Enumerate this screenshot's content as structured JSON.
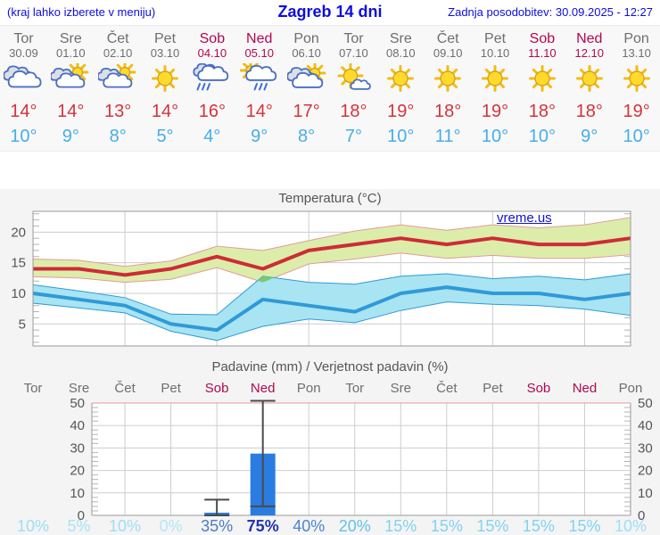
{
  "header": {
    "hint": "(kraj lahko izberete v meniju)",
    "title": "Zagreb 14 dni",
    "updated": "Zadnja posodobitev: 30.09.2025 - 12:27"
  },
  "watermark": "vreme.us",
  "colors": {
    "link_blue": "#0d0de0",
    "weekday": "#6e6e6e",
    "weekend": "#b3074f",
    "temp_max": "#d4333b",
    "temp_min": "#47ade8",
    "bar_blue": "#2a7ce0",
    "whisker": "#4a4a4a",
    "band_green": "#dcedaa",
    "band_green_edge": "#e39b9b",
    "band_cyan": "#a9e4f2",
    "band_overlap": "#7cc96e",
    "line_red": "#ce2b38",
    "line_blue": "#2f9ad8",
    "grid": "#cdcdcd",
    "axis_text": "#555555"
  },
  "days": [
    {
      "name": "Tor",
      "date": "30.09",
      "weekend": false,
      "icon": "cloudy",
      "tmax": 14,
      "tmin": 10,
      "prob": "10%",
      "prob_color": "#9ddff2",
      "prob_bold": false
    },
    {
      "name": "Sre",
      "date": "01.10",
      "weekend": false,
      "icon": "partly-cloudy",
      "tmax": 14,
      "tmin": 9,
      "prob": "5%",
      "prob_color": "#a6e3f4",
      "prob_bold": false
    },
    {
      "name": "Čet",
      "date": "02.10",
      "weekend": false,
      "icon": "partly-cloudy",
      "tmax": 13,
      "tmin": 8,
      "prob": "10%",
      "prob_color": "#9ddff2",
      "prob_bold": false
    },
    {
      "name": "Pet",
      "date": "03.10",
      "weekend": false,
      "icon": "sunny",
      "tmax": 14,
      "tmin": 5,
      "prob": "0%",
      "prob_color": "#b2e7f6",
      "prob_bold": false
    },
    {
      "name": "Sob",
      "date": "04.10",
      "weekend": true,
      "icon": "rain",
      "tmax": 16,
      "tmin": 4,
      "prob": "35%",
      "prob_color": "#4d7dc0",
      "prob_bold": false
    },
    {
      "name": "Ned",
      "date": "05.10",
      "weekend": true,
      "icon": "sun-rain",
      "tmax": 14,
      "tmin": 9,
      "prob": "75%",
      "prob_color": "#2433b2",
      "prob_bold": true
    },
    {
      "name": "Pon",
      "date": "06.10",
      "weekend": false,
      "icon": "mostly-cloudy",
      "tmax": 17,
      "tmin": 8,
      "prob": "40%",
      "prob_color": "#4a86cc",
      "prob_bold": false
    },
    {
      "name": "Tor",
      "date": "07.10",
      "weekend": false,
      "icon": "mostly-sunny",
      "tmax": 18,
      "tmin": 7,
      "prob": "20%",
      "prob_color": "#5fc2e8",
      "prob_bold": false
    },
    {
      "name": "Sre",
      "date": "08.10",
      "weekend": false,
      "icon": "sunny",
      "tmax": 19,
      "tmin": 10,
      "prob": "15%",
      "prob_color": "#82d3ee",
      "prob_bold": false
    },
    {
      "name": "Čet",
      "date": "09.10",
      "weekend": false,
      "icon": "sunny",
      "tmax": 18,
      "tmin": 11,
      "prob": "15%",
      "prob_color": "#82d3ee",
      "prob_bold": false
    },
    {
      "name": "Pet",
      "date": "10.10",
      "weekend": false,
      "icon": "sunny",
      "tmax": 19,
      "tmin": 10,
      "prob": "15%",
      "prob_color": "#82d3ee",
      "prob_bold": false
    },
    {
      "name": "Sob",
      "date": "11.10",
      "weekend": true,
      "icon": "sunny",
      "tmax": 18,
      "tmin": 10,
      "prob": "15%",
      "prob_color": "#82d3ee",
      "prob_bold": false
    },
    {
      "name": "Ned",
      "date": "12.10",
      "weekend": true,
      "icon": "sunny",
      "tmax": 18,
      "tmin": 9,
      "prob": "15%",
      "prob_color": "#82d3ee",
      "prob_bold": false
    },
    {
      "name": "Pon",
      "date": "13.10",
      "weekend": false,
      "icon": "sunny",
      "tmax": 19,
      "tmin": 10,
      "prob": "10%",
      "prob_color": "#9ddff2",
      "prob_bold": false
    }
  ],
  "chart_data": [
    {
      "type": "line",
      "title": "Temperatura (°C)",
      "categories": [
        "Tor 30.09",
        "Sre 01.10",
        "Čet 02.10",
        "Pet 03.10",
        "Sob 04.10",
        "Ned 05.10",
        "Pon 06.10",
        "Tor 07.10",
        "Sre 08.10",
        "Čet 09.10",
        "Pet 10.10",
        "Sob 11.10",
        "Ned 12.10",
        "Pon 13.10"
      ],
      "ylim": [
        1.4,
        23.4
      ],
      "yticks": [
        5,
        10,
        15,
        20
      ],
      "grid": true,
      "series": [
        {
          "name": "max",
          "values": [
            14,
            14,
            13,
            14,
            16,
            14,
            17,
            18,
            19,
            18,
            19,
            18,
            18,
            19
          ]
        },
        {
          "name": "max_upper",
          "values": [
            15.6,
            15.4,
            14.4,
            15.3,
            17.7,
            17.0,
            18.6,
            20.2,
            21.2,
            20.3,
            21.2,
            20.7,
            21.2,
            22.4
          ]
        },
        {
          "name": "max_lower",
          "values": [
            12.7,
            12.5,
            11.8,
            12.3,
            14.2,
            11.8,
            14.8,
            15.6,
            16.6,
            15.7,
            16.2,
            15.7,
            15.7,
            16.3
          ]
        },
        {
          "name": "min",
          "values": [
            10,
            9,
            8,
            5,
            4,
            9,
            8,
            7,
            10,
            11,
            10,
            10,
            9,
            10
          ]
        },
        {
          "name": "min_upper",
          "values": [
            11.4,
            10.4,
            9.3,
            6.6,
            6.5,
            12.8,
            11.8,
            11.5,
            12.8,
            13.2,
            12.4,
            12.8,
            12.2,
            13.2
          ]
        },
        {
          "name": "min_lower",
          "values": [
            8.4,
            7.6,
            6.8,
            3.8,
            2.3,
            4.6,
            5.8,
            5.2,
            7.2,
            8.6,
            8.2,
            8.0,
            7.4,
            6.4
          ]
        }
      ]
    },
    {
      "type": "bar",
      "title": "Padavine (mm) / Verjetnost padavin (%)",
      "categories": [
        "Tor",
        "Sre",
        "Čet",
        "Pet",
        "Sob",
        "Ned",
        "Pon",
        "Tor",
        "Sre",
        "Čet",
        "Pet",
        "Sob",
        "Ned",
        "Pon"
      ],
      "values": [
        0,
        0,
        0,
        0,
        1.2,
        27.5,
        0,
        0,
        0,
        0,
        0,
        0,
        0,
        0
      ],
      "range_low": [
        0,
        0,
        0,
        0,
        0,
        4,
        0,
        0,
        0,
        0,
        0,
        0,
        0,
        0
      ],
      "range_high": [
        0,
        0,
        0,
        0,
        7,
        51,
        0,
        0,
        0,
        0,
        0,
        0,
        0,
        0
      ],
      "probabilities": [
        "10%",
        "5%",
        "10%",
        "0%",
        "35%",
        "75%",
        "40%",
        "20%",
        "15%",
        "15%",
        "15%",
        "15%",
        "15%",
        "10%"
      ],
      "ylim": [
        0,
        50
      ],
      "yticks": [
        0,
        10,
        20,
        30,
        40,
        50
      ],
      "grid": true
    }
  ]
}
